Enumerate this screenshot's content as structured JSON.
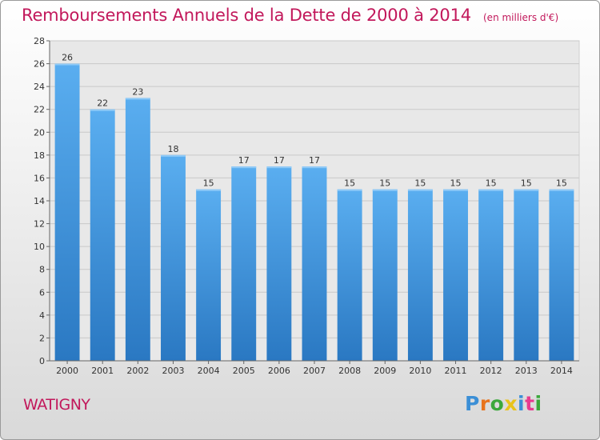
{
  "chart_data": {
    "type": "bar",
    "title": "Remboursements Annuels de la Dette de 2000 à 2014",
    "subtitle": "(en milliers d'€)",
    "xlabel": "",
    "ylabel": "",
    "categories": [
      "2000",
      "2001",
      "2002",
      "2003",
      "2004",
      "2005",
      "2006",
      "2007",
      "2008",
      "2009",
      "2010",
      "2011",
      "2012",
      "2013",
      "2014"
    ],
    "values": [
      26,
      22,
      23,
      18,
      15,
      17,
      17,
      17,
      15,
      15,
      15,
      15,
      15,
      15,
      15
    ],
    "ylim": [
      0,
      28
    ],
    "yticks": [
      0,
      2,
      4,
      6,
      8,
      10,
      12,
      14,
      16,
      18,
      20,
      22,
      24,
      26,
      28
    ],
    "grid": true,
    "bar_color": "#3f95e0",
    "data_labels": true
  },
  "commune": "WATIGNY",
  "logo": {
    "letters": [
      "P",
      "r",
      "o",
      "x",
      "i",
      "t",
      "i"
    ],
    "colors": [
      "#3b8fd6",
      "#e8731c",
      "#3ba83b",
      "#e8c31c",
      "#3b8fd6",
      "#e83b8f",
      "#3ba83b"
    ]
  }
}
